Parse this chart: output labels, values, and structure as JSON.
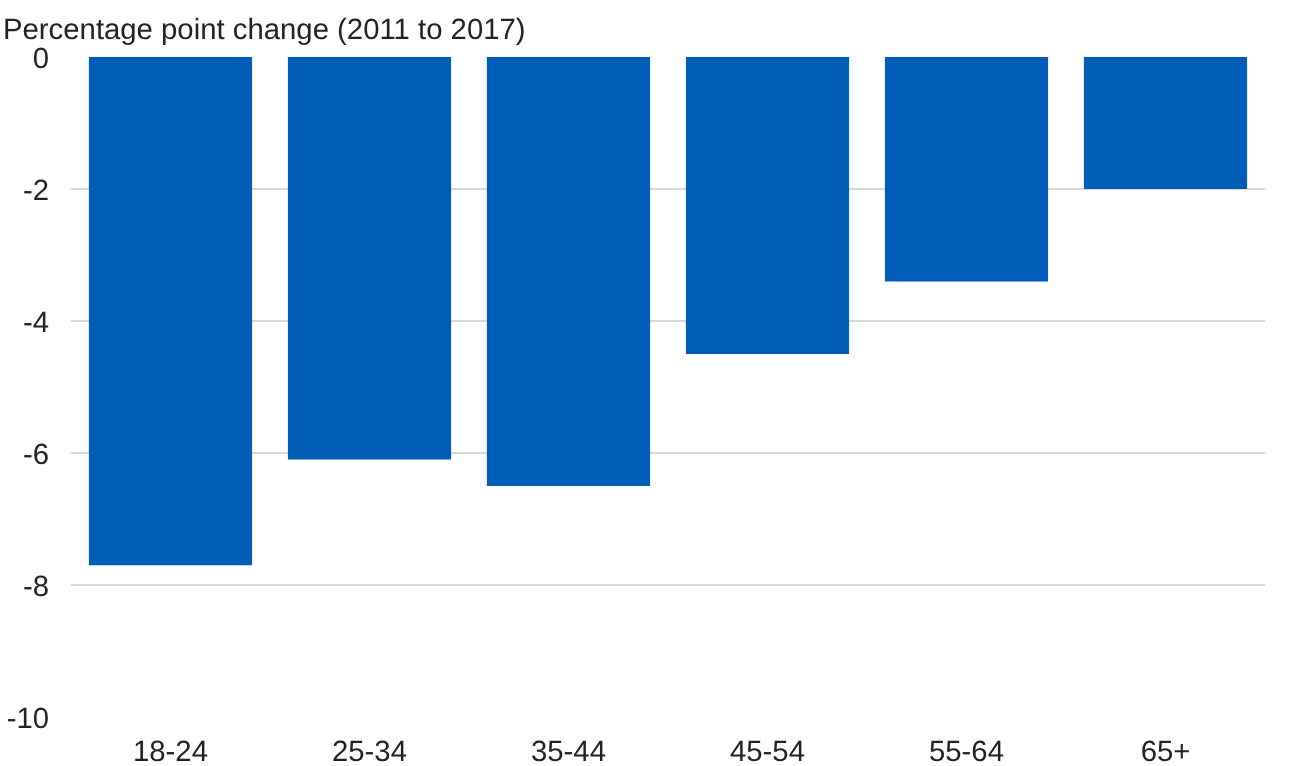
{
  "chart_data": {
    "type": "bar",
    "ylabel": "Percentage point change (2011 to 2017)",
    "categories": [
      "18-24",
      "25-34",
      "35-44",
      "45-54",
      "55-64",
      "65+"
    ],
    "values": [
      -7.7,
      -6.1,
      -6.5,
      -4.5,
      -3.4,
      -2.0
    ],
    "color": "#005eb8",
    "ylim": [
      -10,
      0
    ],
    "yticks": [
      0,
      -2,
      -4,
      -6,
      -8,
      -10
    ],
    "grid": "y"
  }
}
